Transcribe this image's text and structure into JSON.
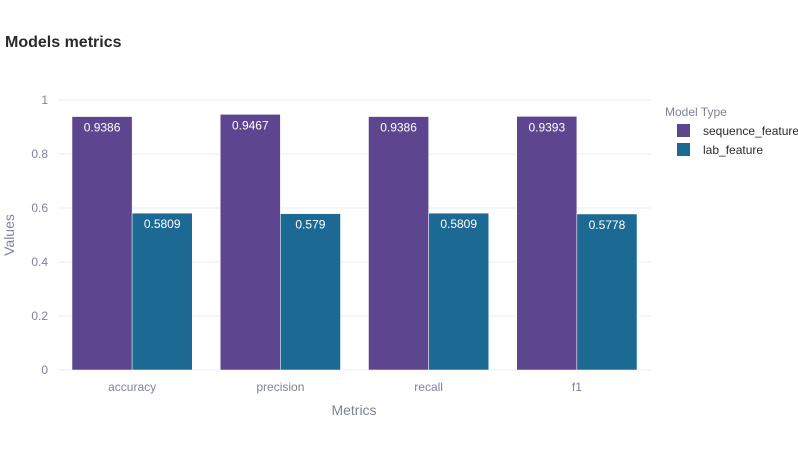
{
  "chart_data": {
    "type": "bar",
    "title": "Models metrics",
    "xlabel": "Metrics",
    "ylabel": "Values",
    "categories": [
      "accuracy",
      "precision",
      "recall",
      "f1"
    ],
    "series": [
      {
        "name": "sequence_feature",
        "color": "#5e4590",
        "values": [
          0.9386,
          0.9467,
          0.9386,
          0.9393
        ],
        "labels": [
          "0.9386",
          "0.9467",
          "0.9386",
          "0.9393"
        ]
      },
      {
        "name": "lab_feature",
        "color": "#1c6a93",
        "values": [
          0.5809,
          0.579,
          0.5809,
          0.5778
        ],
        "labels": [
          "0.5809",
          "0.579",
          "0.5809",
          "0.5778"
        ]
      }
    ],
    "ylim": [
      0,
      1
    ],
    "yticks": [
      0,
      0.2,
      0.4,
      0.6,
      0.8,
      1
    ],
    "ytick_labels": [
      "0",
      "0.2",
      "0.4",
      "0.6",
      "0.8",
      "1"
    ],
    "legend": {
      "title": "Model Type",
      "placement": "top-right"
    },
    "grid": true,
    "colors": {
      "grid": "#ebedf2",
      "axis_text": "#7f8397",
      "label_text": "#ffffff"
    }
  }
}
